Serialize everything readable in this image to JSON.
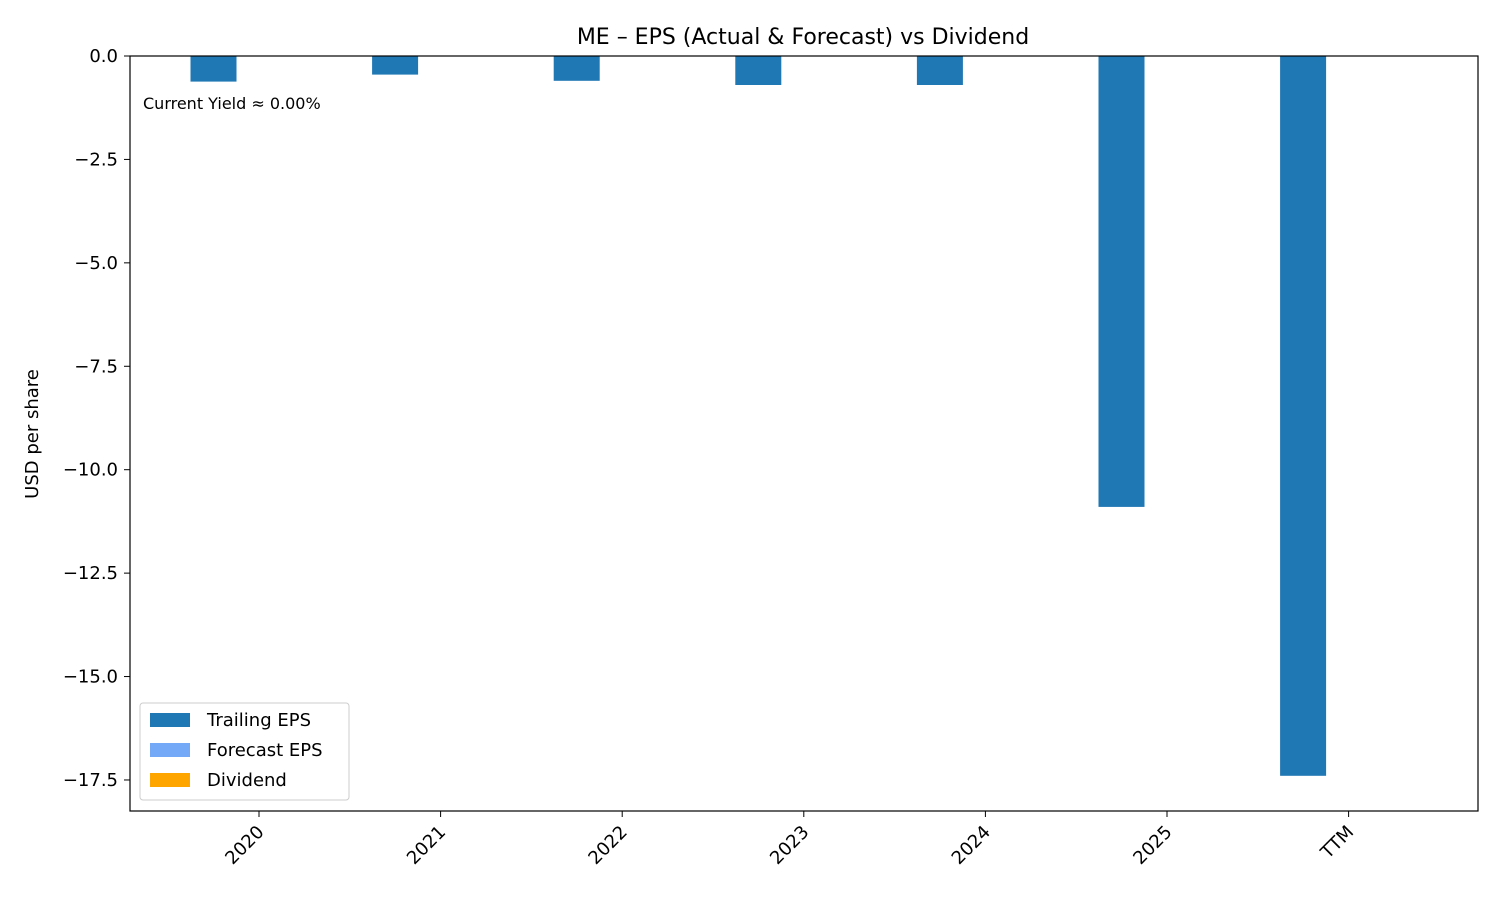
{
  "chart_data": {
    "type": "bar",
    "title": "ME – EPS (Actual & Forecast) vs Dividend",
    "xlabel": "",
    "ylabel": "USD per share",
    "categories": [
      "2020",
      "2021",
      "2022",
      "2023",
      "2024",
      "2025",
      "TTM"
    ],
    "series": [
      {
        "name": "Trailing EPS",
        "color": "#1f77b4",
        "values": [
          -0.62,
          -0.45,
          -0.6,
          -0.7,
          -0.7,
          -10.9,
          -17.4
        ]
      },
      {
        "name": "Forecast EPS",
        "color": "#74a9f7",
        "values": [
          null,
          null,
          null,
          null,
          null,
          null,
          null
        ]
      },
      {
        "name": "Dividend",
        "color": "#ffa500",
        "values": [
          null,
          null,
          null,
          null,
          null,
          null,
          null
        ]
      }
    ],
    "ylim": [
      -18.25,
      0
    ],
    "yticks": [
      0.0,
      -2.5,
      -5.0,
      -7.5,
      -10.0,
      -12.5,
      -15.0,
      -17.5
    ],
    "ytick_labels": [
      "0.0",
      "−2.5",
      "−5.0",
      "−7.5",
      "−10.0",
      "−12.5",
      "−15.0",
      "−17.5"
    ],
    "annotation": "Current Yield ≈ 0.00%",
    "legend_position": "lower-left",
    "grid": false
  }
}
